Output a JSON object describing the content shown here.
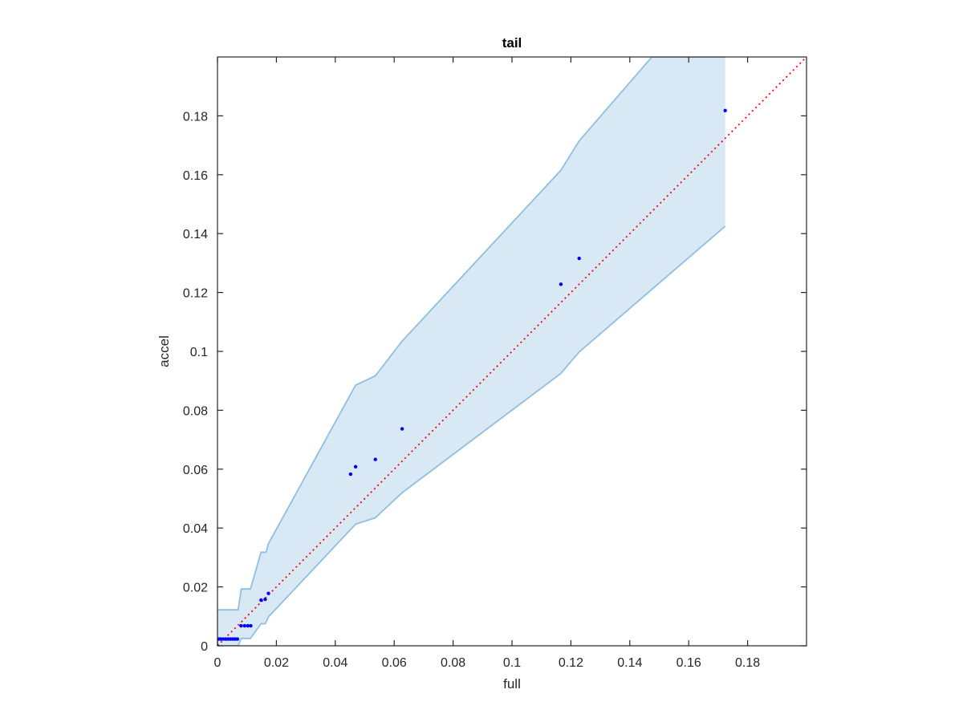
{
  "chart_data": {
    "type": "scatter",
    "title": "tail",
    "xlabel": "full",
    "ylabel": "accel",
    "xlim": [
      0,
      0.2
    ],
    "ylim": [
      0,
      0.2
    ],
    "xticks": [
      "0",
      "0.02",
      "0.04",
      "0.06",
      "0.08",
      "0.1",
      "0.12",
      "0.14",
      "0.16",
      "0.18"
    ],
    "yticks": [
      "0",
      "0.02",
      "0.04",
      "0.06",
      "0.08",
      "0.1",
      "0.12",
      "0.14",
      "0.16",
      "0.18"
    ],
    "grid": false,
    "points": [
      {
        "x": 0.0,
        "y": 0.0
      },
      {
        "x": 0.0005,
        "y": 0.0023
      },
      {
        "x": 0.0012,
        "y": 0.0023
      },
      {
        "x": 0.002,
        "y": 0.0023
      },
      {
        "x": 0.0028,
        "y": 0.0023
      },
      {
        "x": 0.0036,
        "y": 0.0023
      },
      {
        "x": 0.0044,
        "y": 0.0023
      },
      {
        "x": 0.0052,
        "y": 0.0023
      },
      {
        "x": 0.006,
        "y": 0.0023
      },
      {
        "x": 0.0068,
        "y": 0.0023
      },
      {
        "x": 0.008,
        "y": 0.0068
      },
      {
        "x": 0.0092,
        "y": 0.0068
      },
      {
        "x": 0.0103,
        "y": 0.0068
      },
      {
        "x": 0.0113,
        "y": 0.0068
      },
      {
        "x": 0.0148,
        "y": 0.0155
      },
      {
        "x": 0.0162,
        "y": 0.0158
      },
      {
        "x": 0.0173,
        "y": 0.0178
      },
      {
        "x": 0.0452,
        "y": 0.0583
      },
      {
        "x": 0.0469,
        "y": 0.0608
      },
      {
        "x": 0.0536,
        "y": 0.0633
      },
      {
        "x": 0.0627,
        "y": 0.0737
      },
      {
        "x": 0.1166,
        "y": 0.1228
      },
      {
        "x": 0.1228,
        "y": 0.1316
      },
      {
        "x": 0.1724,
        "y": 0.1818
      }
    ],
    "band_upper": [
      [
        0.0,
        0.0122
      ],
      [
        0.007,
        0.0122
      ],
      [
        0.0081,
        0.0193
      ],
      [
        0.0112,
        0.0193
      ],
      [
        0.0148,
        0.0318
      ],
      [
        0.0165,
        0.0318
      ],
      [
        0.0173,
        0.0347
      ],
      [
        0.0469,
        0.0885
      ],
      [
        0.0536,
        0.0917
      ],
      [
        0.0627,
        0.1035
      ],
      [
        0.1166,
        0.1615
      ],
      [
        0.1228,
        0.1715
      ],
      [
        0.1475,
        0.2
      ],
      [
        0.1724,
        0.2
      ]
    ],
    "band_lower": [
      [
        0.1724,
        0.1425
      ],
      [
        0.1228,
        0.0998
      ],
      [
        0.1166,
        0.0925
      ],
      [
        0.0627,
        0.052
      ],
      [
        0.0536,
        0.0435
      ],
      [
        0.0469,
        0.0413
      ],
      [
        0.0173,
        0.0098
      ],
      [
        0.0162,
        0.0075
      ],
      [
        0.0148,
        0.0075
      ],
      [
        0.0112,
        0.0025
      ],
      [
        0.0081,
        0.0025
      ],
      [
        0.007,
        0.0
      ],
      [
        0.0,
        0.0
      ]
    ],
    "reference_line": {
      "from": [
        0,
        0
      ],
      "to": [
        0.2,
        0.2
      ],
      "style": "dotted"
    },
    "colors": {
      "points": "#0000ff",
      "band_fill": "#d9e8f5",
      "band_edge": "#8ebfe0",
      "reference_line": "#ff0000",
      "axes": "#262626"
    }
  }
}
